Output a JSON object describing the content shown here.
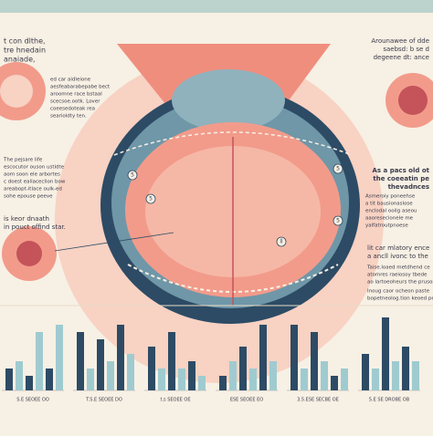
{
  "blocks": [
    {
      "lines": [
        "t con dlthe,",
        "tre hnedain",
        "anaiade,"
      ]
    },
    {
      "lines": [
        "ed car aidleione",
        "aesfeabarabepabe bect",
        "aroomne race bstaal",
        "scecsoe.ootk. Lover",
        "coeesedoteak rea",
        "searioldty ten."
      ]
    },
    {
      "lines": [
        "The pejsare life",
        "escocutor ouson ustidte",
        "aom soon ele arbortes",
        "c doest ealiaceclion bow",
        "areabopt-itlace oulk-ed",
        "sohe epouse peeve"
      ]
    },
    {
      "lines": [
        "is keor dnaath",
        "in pouct offind star."
      ]
    },
    {
      "lines": [
        "Arounawee of dde",
        "saebsd: b se d",
        "degeene dt: ance"
      ]
    },
    {
      "lines": [
        "As a pacs old ot",
        "the coeeatin pe",
        "thevadnces"
      ]
    },
    {
      "lines": [
        "Asmeroiy poneehse",
        "a tit bausionaslose",
        "enclodal ooilg aseou",
        "aaoresecionele me",
        "yalfatroutpnoese"
      ]
    },
    {
      "lines": [
        "lit car mlatory ence",
        "a ancll ivonc to the"
      ]
    },
    {
      "lines": [
        "Taise.loaed metdhend ce",
        "atomres raeiosoy tbede",
        "ao lartoeoheurs the prusone"
      ]
    },
    {
      "lines": [
        "Inoug caor ocheon paste",
        "bopetneolog.tion keoed pe"
      ]
    }
  ],
  "markers": [
    "5",
    "5",
    "5",
    "5",
    "ll"
  ],
  "palette": [
    "#2d4b65",
    "#9fcbd0"
  ],
  "mini_charts": [
    {
      "label": "S.E SEOEE OO",
      "bars": [
        3,
        4,
        2,
        8,
        3,
        9
      ]
    },
    {
      "label": "T.S.E SEOEE DO",
      "bars": [
        8,
        3,
        7,
        4,
        9,
        5
      ]
    },
    {
      "label": "t.s SEOEE OE",
      "bars": [
        6,
        3,
        8,
        3,
        4,
        2
      ]
    },
    {
      "label": "ESE SEOEE EO",
      "bars": [
        2,
        4,
        6,
        3,
        9,
        4
      ]
    },
    {
      "label": "3.5.ESE SECBE OE",
      "bars": [
        9,
        3,
        8,
        4,
        2,
        3
      ]
    },
    {
      "label": "5.E SE DROBE OB",
      "bars": [
        5,
        3,
        10,
        4,
        6,
        4
      ]
    }
  ]
}
